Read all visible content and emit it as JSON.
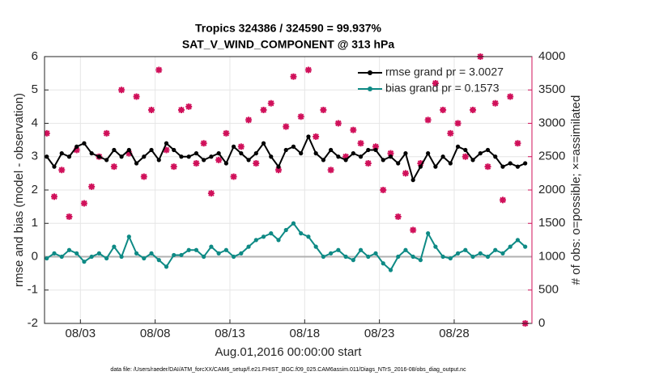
{
  "chart_data": {
    "type": "line",
    "title": "Tropics 324386 / 324590 = 99.937%",
    "subtitle": "SAT_V_WIND_COMPONENT @ 313 hPa",
    "xlabel": "Aug.01,2016 00:00:00 start",
    "ylabel": "rmse and bias (model - observation)",
    "y2label": "# of obs: o=possible; ×=assimilated",
    "footnote": "data file: /Users/raeder/DAI/ATM_forcXX/CAM6_setup/f.e21.FHIST_BGC.f09_025.CAM6assim.011/Diags_NTrS_2016-08/obs_diag_output.nc",
    "x": [
      0.75,
      1.25,
      1.75,
      2.25,
      2.75,
      3.25,
      3.75,
      4.25,
      4.75,
      5.25,
      5.75,
      6.25,
      6.75,
      7.25,
      7.75,
      8.25,
      8.75,
      9.25,
      9.75,
      10.25,
      10.75,
      11.25,
      11.75,
      12.25,
      12.75,
      13.25,
      13.75,
      14.25,
      14.75,
      15.25,
      15.75,
      16.25,
      16.75,
      17.25,
      17.75,
      18.25,
      18.75,
      19.25,
      19.75,
      20.25,
      20.75,
      21.25,
      21.75,
      22.25,
      22.75,
      23.25,
      23.75,
      24.25,
      24.75,
      25.25,
      25.75,
      26.25,
      26.75,
      27.25,
      27.75,
      28.25,
      28.75,
      29.25,
      29.75,
      30.25,
      30.75,
      31.25,
      31.75,
      32.25,
      32.75
    ],
    "series": [
      {
        "name": "rmse grand pr = 3.0027",
        "color": "#000000",
        "marker": "circle",
        "values": [
          3.0,
          2.7,
          3.1,
          3.0,
          3.3,
          3.4,
          3.1,
          3.0,
          2.9,
          3.2,
          3.0,
          3.2,
          2.8,
          3.0,
          3.2,
          2.9,
          3.4,
          3.2,
          3.0,
          3.0,
          3.1,
          2.9,
          3.0,
          3.1,
          2.8,
          3.3,
          3.1,
          2.9,
          3.1,
          3.4,
          3.0,
          2.7,
          3.2,
          3.3,
          3.1,
          3.6,
          3.1,
          2.9,
          3.2,
          3.0,
          2.9,
          3.1,
          3.0,
          3.2,
          3.2,
          2.9,
          3.0,
          2.8,
          3.1,
          2.3,
          2.7,
          3.1,
          2.7,
          3.0,
          2.8,
          3.3,
          3.2,
          2.9,
          3.1,
          3.2,
          3.0,
          2.7,
          2.8,
          2.7,
          2.8
        ]
      },
      {
        "name": "bias grand pr = 0.1573",
        "color": "#0e8a85",
        "marker": "circle",
        "values": [
          -0.05,
          0.1,
          0.0,
          0.2,
          0.1,
          -0.15,
          0.0,
          0.1,
          -0.05,
          0.3,
          0.0,
          0.6,
          0.1,
          -0.05,
          0.1,
          -0.1,
          -0.3,
          0.05,
          0.05,
          0.2,
          0.2,
          0.0,
          0.3,
          0.1,
          0.2,
          0.0,
          0.1,
          0.3,
          0.5,
          0.6,
          0.7,
          0.5,
          0.8,
          1.0,
          0.7,
          0.6,
          0.3,
          0.0,
          0.1,
          0.2,
          0.0,
          -0.1,
          0.2,
          0.0,
          0.1,
          -0.2,
          -0.4,
          0.0,
          0.2,
          0.0,
          -0.1,
          0.7,
          0.3,
          0.0,
          -0.05,
          0.1,
          0.2,
          0.0,
          0.1,
          0.0,
          0.2,
          0.1,
          0.3,
          0.5,
          0.3
        ]
      },
      {
        "color": "#d0105a",
        "marker": "x",
        "axis": "y2",
        "values": [
          2850,
          1900,
          2300,
          1600,
          2600,
          1800,
          2050,
          2500,
          2850,
          2350,
          3500,
          2550,
          3400,
          2200,
          3200,
          3800,
          2600,
          2350,
          3200,
          3250,
          2400,
          2700,
          1950,
          2450,
          2850,
          2200,
          2650,
          3050,
          2400,
          3200,
          3300,
          2300,
          2950,
          3700,
          3100,
          3800,
          2800,
          3200,
          2300,
          3000,
          2500,
          2900,
          2700,
          2400,
          2650,
          2000,
          2550,
          1600,
          2250,
          1400,
          2400,
          3050,
          3600,
          3200,
          2850,
          3000,
          2500,
          3200,
          4000,
          2350,
          3300,
          1850,
          3400,
          2700,
          0
        ]
      }
    ],
    "xlim": [
      0.6,
      33.2
    ],
    "xticks": [
      {
        "value": 3,
        "label": "08/03"
      },
      {
        "value": 8,
        "label": "08/08"
      },
      {
        "value": 13,
        "label": "08/13"
      },
      {
        "value": 18,
        "label": "08/18"
      },
      {
        "value": 23,
        "label": "08/23"
      },
      {
        "value": 28,
        "label": "08/28"
      }
    ],
    "ylim": [
      -2,
      6
    ],
    "yticks": [
      -2,
      -1,
      0,
      1,
      2,
      3,
      4,
      5,
      6
    ],
    "y2lim": [
      0,
      4000
    ],
    "y2ticks": [
      0,
      500,
      1000,
      1500,
      2000,
      2500,
      3000,
      3500,
      4000
    ],
    "y2color": "#d0105a",
    "reference_line": 0,
    "grid": true,
    "legend": "upper right",
    "legend_text_color": "#1f5fe0"
  }
}
